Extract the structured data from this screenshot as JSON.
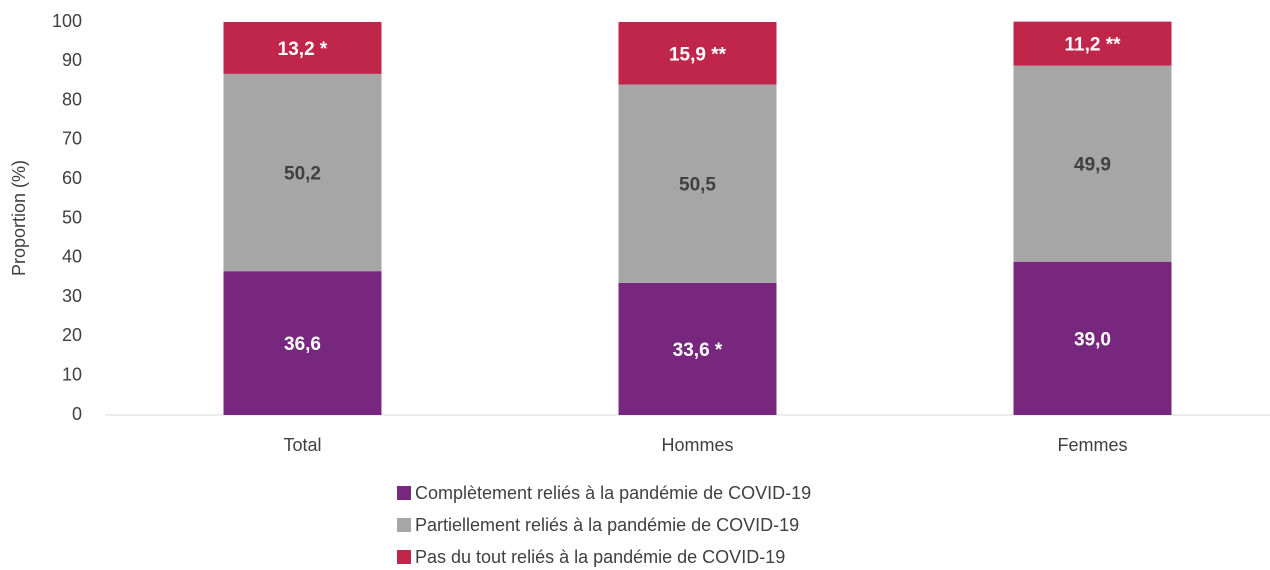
{
  "chart_data": {
    "type": "stacked_bar",
    "ylabel": "Proportion (%)",
    "categories": [
      "Total",
      "Hommes",
      "Femmes"
    ],
    "series": [
      {
        "name": "Complètement reliés à la pandémie de COVID-19",
        "color": "#77277d",
        "values": [
          36.6,
          33.6,
          39.0
        ],
        "value_labels": [
          "36,6",
          "33,6 *",
          "39,0"
        ]
      },
      {
        "name": "Partiellement reliés à la pandémie de COVID-19",
        "color": "#a6a6a6",
        "values": [
          50.2,
          50.5,
          49.9
        ],
        "value_labels": [
          "50,2",
          "50,5",
          "49,9"
        ]
      },
      {
        "name": "Pas du tout reliés à la pandémie de COVID-19",
        "color": "#c0254a",
        "values": [
          13.2,
          15.9,
          11.2
        ],
        "value_labels": [
          "13,2 *",
          "15,9 **",
          "11,2 **"
        ]
      }
    ],
    "ylim": [
      0,
      100
    ],
    "yticks": [
      0,
      10,
      20,
      30,
      40,
      50,
      60,
      70,
      80,
      90,
      100
    ],
    "grid": false,
    "legend": "bottom"
  }
}
